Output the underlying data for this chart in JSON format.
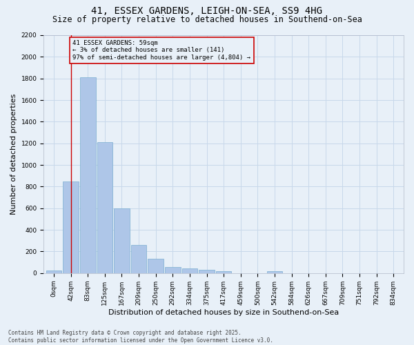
{
  "title_line1": "41, ESSEX GARDENS, LEIGH-ON-SEA, SS9 4HG",
  "title_line2": "Size of property relative to detached houses in Southend-on-Sea",
  "xlabel": "Distribution of detached houses by size in Southend-on-Sea",
  "ylabel": "Number of detached properties",
  "bar_labels": [
    "0sqm",
    "42sqm",
    "83sqm",
    "125sqm",
    "167sqm",
    "209sqm",
    "250sqm",
    "292sqm",
    "334sqm",
    "375sqm",
    "417sqm",
    "459sqm",
    "500sqm",
    "542sqm",
    "584sqm",
    "626sqm",
    "667sqm",
    "709sqm",
    "751sqm",
    "792sqm",
    "834sqm"
  ],
  "bar_values": [
    25,
    845,
    1810,
    1210,
    600,
    260,
    130,
    55,
    45,
    30,
    20,
    0,
    0,
    15,
    0,
    0,
    0,
    0,
    0,
    0,
    0
  ],
  "bar_color": "#aec6e8",
  "bar_edge_color": "#7aaed0",
  "grid_color": "#c8d8ea",
  "background_color": "#e8f0f8",
  "vline_x": 1.0,
  "vline_color": "#cc0000",
  "annotation_text": "41 ESSEX GARDENS: 59sqm\n← 3% of detached houses are smaller (141)\n97% of semi-detached houses are larger (4,804) →",
  "annotation_box_color": "#cc0000",
  "ylim": [
    0,
    2200
  ],
  "yticks": [
    0,
    200,
    400,
    600,
    800,
    1000,
    1200,
    1400,
    1600,
    1800,
    2000,
    2200
  ],
  "footer_text": "Contains HM Land Registry data © Crown copyright and database right 2025.\nContains public sector information licensed under the Open Government Licence v3.0.",
  "title_fontsize": 10,
  "subtitle_fontsize": 8.5,
  "axis_label_fontsize": 8,
  "tick_fontsize": 6.5,
  "annotation_fontsize": 6.5,
  "footer_fontsize": 5.5
}
